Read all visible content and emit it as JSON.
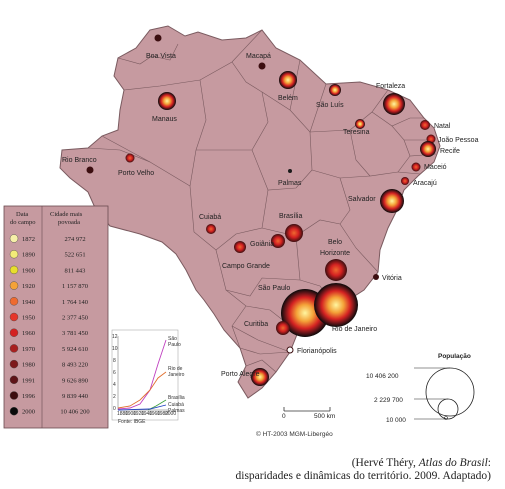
{
  "cities": [
    {
      "name": "Boa Vista"
    },
    {
      "name": "Macapá"
    },
    {
      "name": "Manaus"
    },
    {
      "name": "Belém"
    },
    {
      "name": "São Luís"
    },
    {
      "name": "Fortaleza"
    },
    {
      "name": "Teresina"
    },
    {
      "name": "Natal"
    },
    {
      "name": "João Pessoa"
    },
    {
      "name": "Recife"
    },
    {
      "name": "Maceió"
    },
    {
      "name": "Aracajú"
    },
    {
      "name": "Rio Branco"
    },
    {
      "name": "Porto Velho"
    },
    {
      "name": "Palmas"
    },
    {
      "name": "Salvador"
    },
    {
      "name": "Cuiabá"
    },
    {
      "name": "Brasília"
    },
    {
      "name": "Goiânia"
    },
    {
      "name": "Belo\nHorizonte"
    },
    {
      "name": "Campo Grande"
    },
    {
      "name": "Vitória"
    },
    {
      "name": "São Paulo"
    },
    {
      "name": "Curitiba"
    },
    {
      "name": "Rio de Janeiro"
    },
    {
      "name": "Florianópolis"
    },
    {
      "name": "Porto Alegre"
    }
  ],
  "legend": {
    "header_year": "Data\ndo campo",
    "header_pop": "Cidade mais\npovoada",
    "rows": [
      {
        "year": "1872",
        "pop": "274 972",
        "color": "#f6f0a8"
      },
      {
        "year": "1890",
        "pop": "522 651",
        "color": "#f2ec78"
      },
      {
        "year": "1900",
        "pop": "811 443",
        "color": "#e8de2c"
      },
      {
        "year": "1920",
        "pop": "1 157 870",
        "color": "#f4a238"
      },
      {
        "year": "1940",
        "pop": "1 764 140",
        "color": "#ee6a30"
      },
      {
        "year": "1950",
        "pop": "2 377 450",
        "color": "#e6352a"
      },
      {
        "year": "1960",
        "pop": "3 781 450",
        "color": "#d42222"
      },
      {
        "year": "1970",
        "pop": "5 924 610",
        "color": "#a82020"
      },
      {
        "year": "1980",
        "pop": "8 493 220",
        "color": "#7e1a1c"
      },
      {
        "year": "1991",
        "pop": "9 626 890",
        "color": "#5e1418"
      },
      {
        "year": "1996",
        "pop": "9 839 440",
        "color": "#3c0e10"
      },
      {
        "year": "2000",
        "pop": "10 406 200",
        "color": "#0a0a0a"
      }
    ]
  },
  "inset": {
    "labels": [
      "São\nPaulo",
      "Rio de\nJaneiro",
      "Brasília",
      "Cuiabá\nPalmas"
    ],
    "years": [
      "1880",
      "1900",
      "1920",
      "1940",
      "1960",
      "1980",
      "2000"
    ],
    "source": "Fonte: IBGE",
    "y_ticks": [
      "12",
      "10",
      "8",
      "6",
      "4",
      "2",
      "0"
    ]
  },
  "scale": {
    "zero": "0",
    "value": "500 km"
  },
  "population": {
    "title": "População",
    "values": [
      "10 406 200",
      "2 229 700",
      "10 000"
    ]
  },
  "credit": "© HT-2003 MGM-Libergéo",
  "source": {
    "prefix": "(Hervé Théry, ",
    "title": "Atlas do Brasil",
    "suffix": ":",
    "line2": "disparidades e dinâmicas do território. 2009. Adaptado)"
  }
}
